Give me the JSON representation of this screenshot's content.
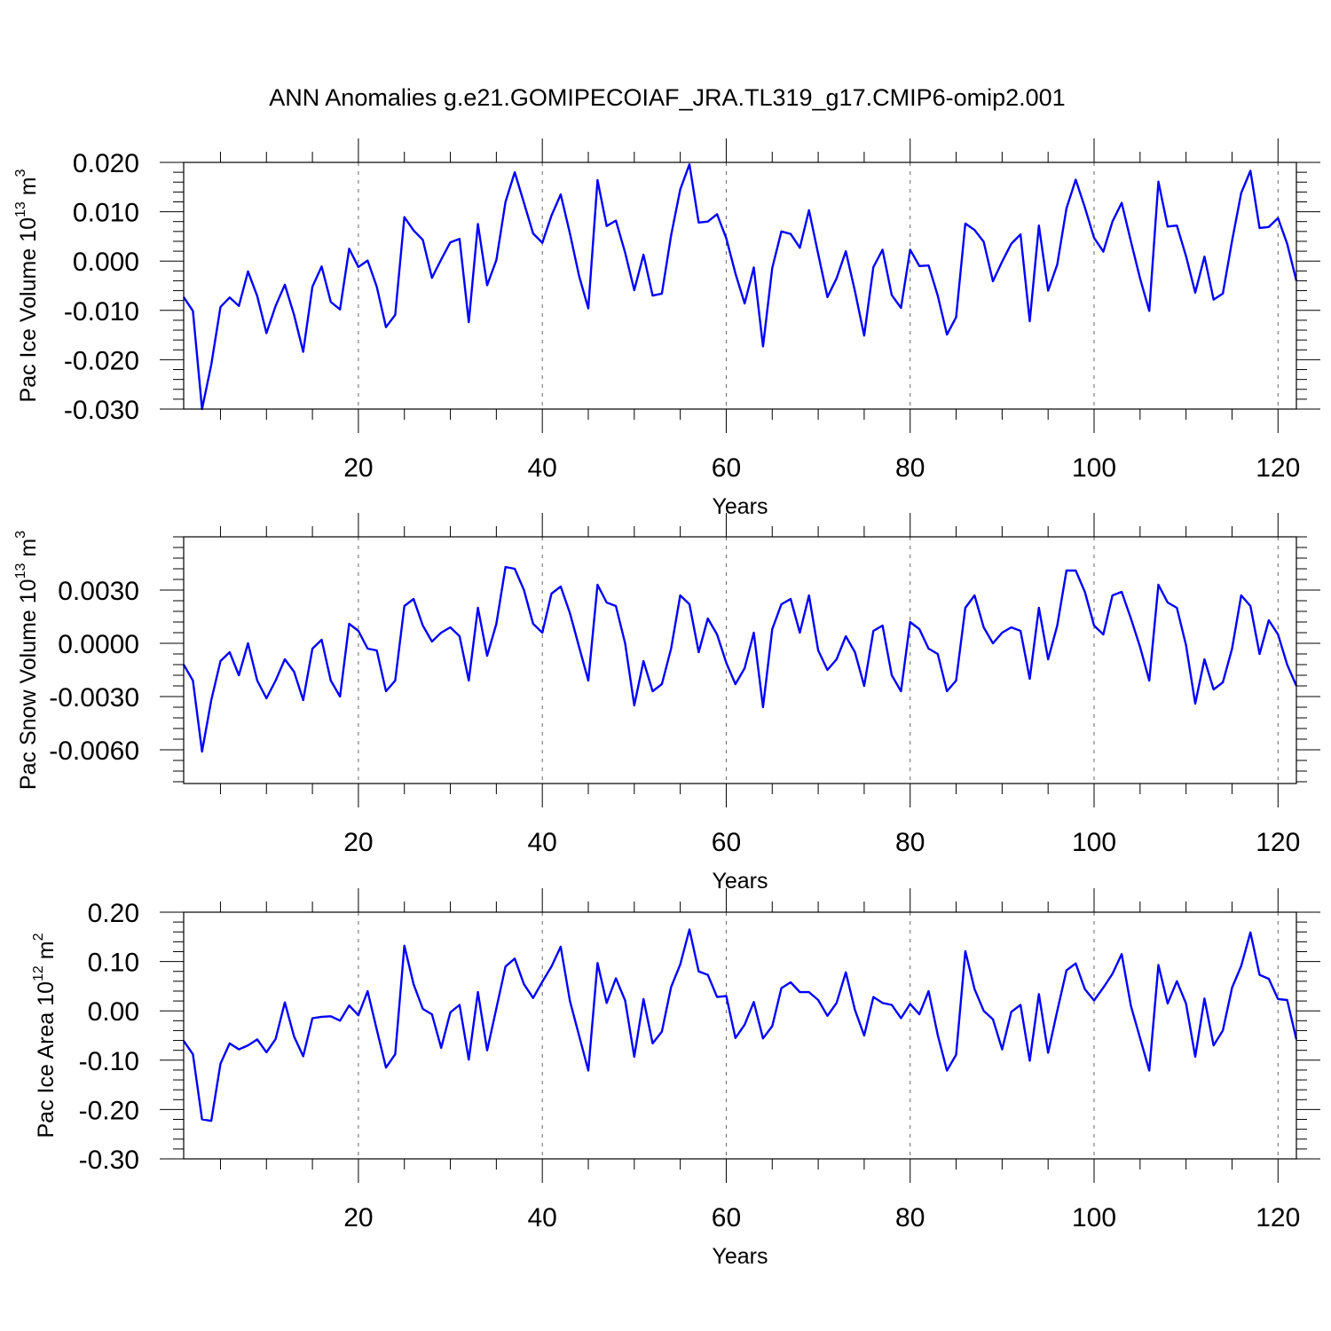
{
  "title": "ANN Anomalies g.e21.GOMIPECOIAF_JRA.TL319_g17.CMIP6-omip2.001",
  "line_color": "#0000ff",
  "chart_data": [
    {
      "type": "line",
      "xlabel": "Years",
      "ylabel": {
        "prefix": "Pac Ice Volume 10",
        "exp": "13",
        "mid": " m",
        "unit_exp": "3"
      },
      "xlim": [
        1,
        122
      ],
      "ylim": [
        -0.03,
        0.02
      ],
      "xticks": [
        "20",
        "40",
        "60",
        "80",
        "100",
        "120"
      ],
      "yticks": [
        "-0.030",
        "-0.020",
        "-0.010",
        "0.000",
        "0.010",
        "0.020"
      ],
      "x_start": 1,
      "series": [
        {
          "name": "Pac Ice Volume",
          "values": [
            -0.0073,
            -0.0101,
            -0.03,
            -0.021,
            -0.0093,
            -0.0074,
            -0.0091,
            -0.0021,
            -0.0071,
            -0.0146,
            -0.0091,
            -0.0048,
            -0.0109,
            -0.0184,
            -0.0052,
            -0.0011,
            -0.0083,
            -0.0098,
            0.0025,
            -0.0012,
            0.0001,
            -0.0052,
            -0.0134,
            -0.0109,
            0.0089,
            0.0062,
            0.0043,
            -0.0034,
            0.0003,
            0.0038,
            0.0045,
            -0.0124,
            0.0075,
            -0.0049,
            0.0002,
            0.012,
            0.018,
            0.0118,
            0.0056,
            0.0037,
            0.0092,
            0.0135,
            0.0056,
            -0.003,
            -0.0096,
            0.0164,
            0.0071,
            0.0082,
            0.0017,
            -0.0059,
            0.0013,
            -0.007,
            -0.0066,
            0.0052,
            0.0145,
            0.0196,
            0.0078,
            0.008,
            0.0095,
            0.0046,
            -0.0025,
            -0.0086,
            -0.0013,
            -0.0173,
            -0.0014,
            0.006,
            0.0055,
            0.0027,
            0.0103,
            0.0014,
            -0.0073,
            -0.0035,
            0.002,
            -0.0061,
            -0.0151,
            -0.0012,
            0.0023,
            -0.0069,
            -0.0095,
            0.0023,
            -0.001,
            -0.0009,
            -0.007,
            -0.0149,
            -0.0114,
            0.0076,
            0.0063,
            0.0039,
            -0.0041,
            -0.0001,
            0.0035,
            0.0054,
            -0.0122,
            0.0072,
            -0.006,
            -0.0007,
            0.0107,
            0.0165,
            0.0109,
            0.0047,
            0.0019,
            0.008,
            0.0118,
            0.004,
            -0.0035,
            -0.0101,
            0.0161,
            0.007,
            0.0072,
            0.001,
            -0.0064,
            0.0009,
            -0.0078,
            -0.0066,
            0.0041,
            0.0138,
            0.0183,
            0.0067,
            0.0069,
            0.0087,
            0.0035,
            -0.004
          ]
        }
      ]
    },
    {
      "type": "line",
      "xlabel": "Years",
      "ylabel": {
        "prefix": "Pac Snow Volume 10",
        "exp": "13",
        "mid": " m",
        "unit_exp": "3"
      },
      "xlim": [
        1,
        122
      ],
      "ylim": [
        -0.0079,
        0.006
      ],
      "xticks": [
        "20",
        "40",
        "60",
        "80",
        "100",
        "120"
      ],
      "yticks": [
        "-0.0060",
        "-0.0030",
        "0.0000",
        "0.0030"
      ],
      "x_start": 1,
      "series": [
        {
          "name": "Pac Snow Volume",
          "values": [
            -0.0012,
            -0.0021,
            -0.0061,
            -0.0032,
            -0.001,
            -0.0005,
            -0.0018,
            0.0,
            -0.0021,
            -0.0031,
            -0.0021,
            -0.0009,
            -0.0016,
            -0.0032,
            -0.0003,
            0.0002,
            -0.0021,
            -0.003,
            0.0011,
            0.0007,
            -0.0003,
            -0.0004,
            -0.0027,
            -0.0021,
            0.0021,
            0.0025,
            0.001,
            0.0001,
            0.0006,
            0.0009,
            0.0004,
            -0.0021,
            0.002,
            -0.0007,
            0.0011,
            0.0043,
            0.0042,
            0.003,
            0.0011,
            0.0006,
            0.0028,
            0.0032,
            0.0017,
            -0.0002,
            -0.0021,
            0.0033,
            0.0023,
            0.0021,
            0.0,
            -0.0035,
            -0.001,
            -0.0027,
            -0.0023,
            -0.0003,
            0.0027,
            0.0022,
            -0.0005,
            0.0014,
            0.0005,
            -0.0011,
            -0.0023,
            -0.0014,
            0.0006,
            -0.0036,
            0.0008,
            0.0022,
            0.0025,
            0.0006,
            0.0027,
            -0.0004,
            -0.0015,
            -0.0009,
            0.0004,
            -0.0005,
            -0.0024,
            0.0007,
            0.001,
            -0.0018,
            -0.0027,
            0.0012,
            0.0008,
            -0.0003,
            -0.0006,
            -0.0027,
            -0.0021,
            0.002,
            0.0027,
            0.0009,
            0.0,
            0.0006,
            0.0009,
            0.0007,
            -0.002,
            0.002,
            -0.0009,
            0.001,
            0.0041,
            0.0041,
            0.0029,
            0.001,
            0.0005,
            0.0027,
            0.0029,
            0.0014,
            -0.0002,
            -0.0021,
            0.0033,
            0.0023,
            0.002,
            -0.0001,
            -0.0034,
            -0.0009,
            -0.0026,
            -0.0022,
            -0.0003,
            0.0027,
            0.0021,
            -0.0006,
            0.0013,
            0.0005,
            -0.0012,
            -0.0024
          ]
        }
      ]
    },
    {
      "type": "line",
      "xlabel": "Years",
      "ylabel": {
        "prefix": "Pac Ice Area 10",
        "exp": "12",
        "mid": " m",
        "unit_exp": "2"
      },
      "xlim": [
        1,
        122
      ],
      "ylim": [
        -0.3,
        0.2
      ],
      "xticks": [
        "20",
        "40",
        "60",
        "80",
        "100",
        "120"
      ],
      "yticks": [
        "-0.30",
        "-0.20",
        "-0.10",
        "0.00",
        "0.10",
        "0.20"
      ],
      "x_start": 1,
      "series": [
        {
          "name": "Pac Ice Area",
          "values": [
            -0.061,
            -0.088,
            -0.22,
            -0.223,
            -0.107,
            -0.066,
            -0.078,
            -0.07,
            -0.058,
            -0.084,
            -0.057,
            0.017,
            -0.052,
            -0.092,
            -0.015,
            -0.012,
            -0.011,
            -0.02,
            0.011,
            -0.009,
            0.04,
            -0.038,
            -0.115,
            -0.088,
            0.132,
            0.054,
            0.004,
            -0.007,
            -0.075,
            -0.003,
            0.012,
            -0.099,
            0.038,
            -0.08,
            0.005,
            0.09,
            0.106,
            0.054,
            0.026,
            0.059,
            0.09,
            0.13,
            0.02,
            -0.05,
            -0.121,
            0.097,
            0.016,
            0.066,
            0.021,
            -0.093,
            0.024,
            -0.066,
            -0.042,
            0.048,
            0.094,
            0.165,
            0.08,
            0.073,
            0.028,
            0.03,
            -0.055,
            -0.028,
            0.018,
            -0.056,
            -0.031,
            0.046,
            0.058,
            0.038,
            0.038,
            0.022,
            -0.01,
            0.016,
            0.078,
            0.002,
            -0.05,
            0.028,
            0.016,
            0.012,
            -0.015,
            0.014,
            -0.007,
            0.04,
            -0.049,
            -0.121,
            -0.089,
            0.121,
            0.044,
            0.0,
            -0.017,
            -0.078,
            -0.002,
            0.012,
            -0.101,
            0.034,
            -0.085,
            0.0,
            0.082,
            0.096,
            0.044,
            0.021,
            0.047,
            0.075,
            0.115,
            0.01,
            -0.055,
            -0.121,
            0.093,
            0.015,
            0.06,
            0.015,
            -0.093,
            0.025,
            -0.07,
            -0.04,
            0.047,
            0.091,
            0.159,
            0.073,
            0.065,
            0.024,
            0.022,
            -0.058
          ]
        }
      ]
    }
  ]
}
